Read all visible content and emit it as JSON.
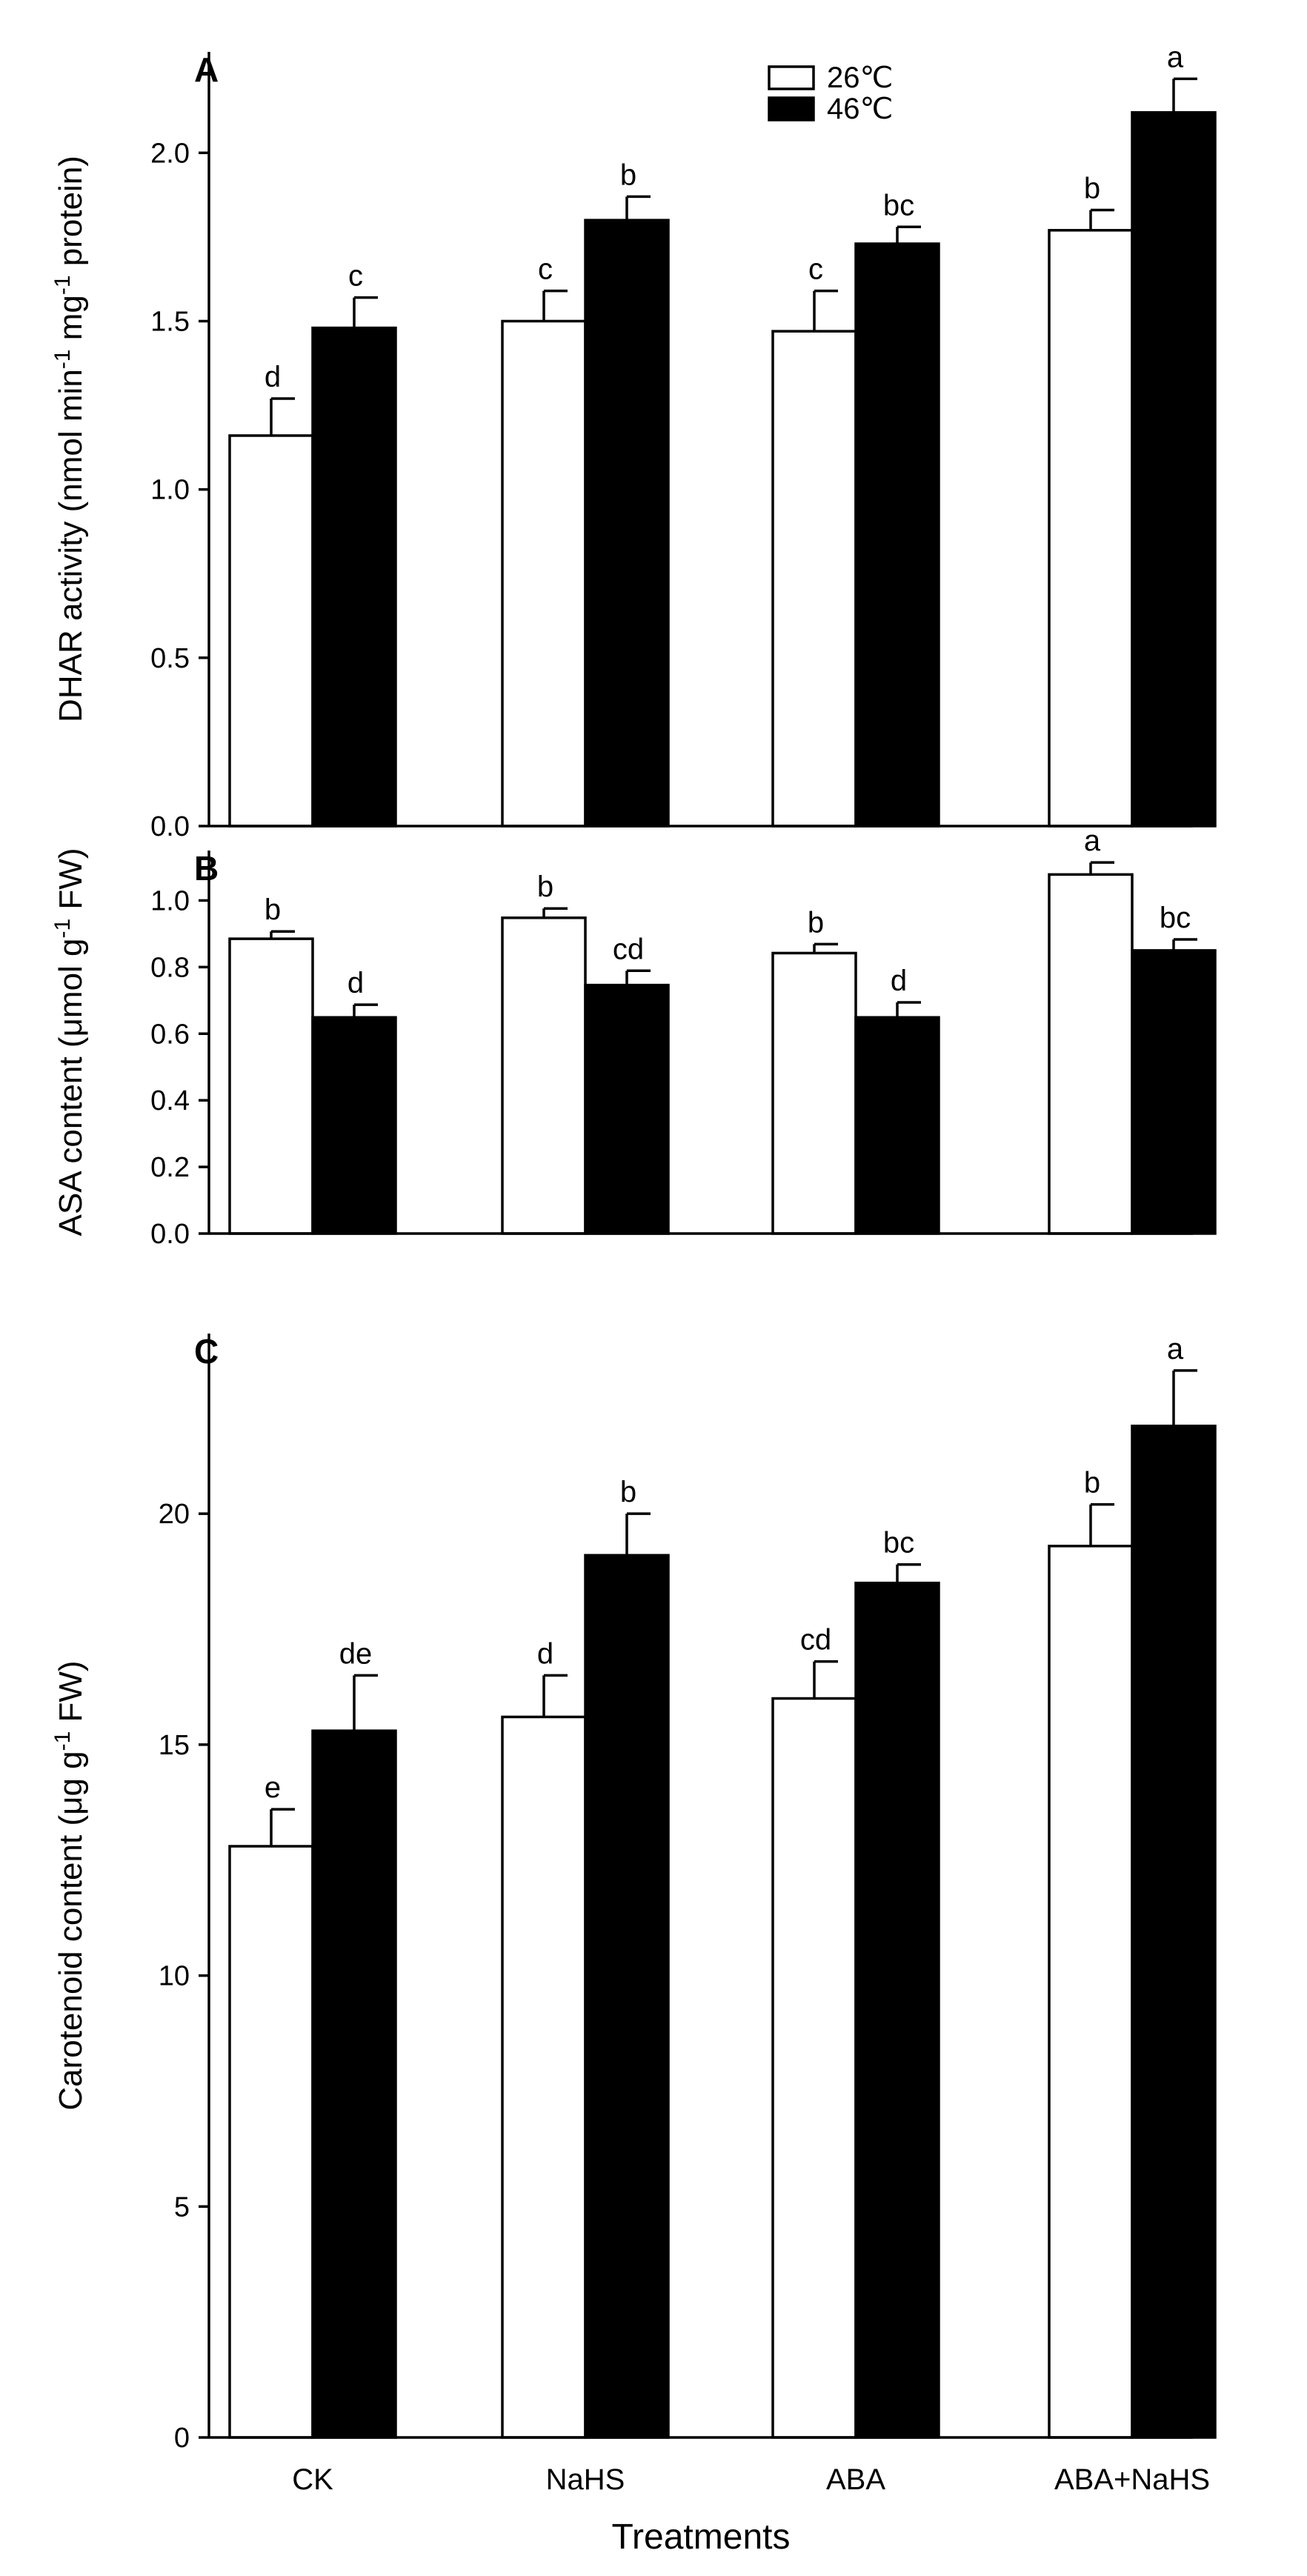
{
  "chart_data": [
    {
      "type": "bar",
      "panel": "A",
      "categories": [
        "CK",
        "NaHS",
        "ABA",
        "ABA+NaHS"
      ],
      "ylabel": "DHAR activity (nmol min",
      "ylabel_sup1": "-1",
      "ylabel_mid": " mg",
      "ylabel_sup2": "-1",
      "ylabel_end": " protein)",
      "ylim": [
        0,
        2.3
      ],
      "yticks": [
        0.0,
        0.5,
        1.0,
        1.5,
        2.0
      ],
      "ytick_labels": [
        "0.0",
        "0.5",
        "1.0",
        "1.5",
        "2.0"
      ],
      "legend": [
        "26℃",
        "46℃"
      ],
      "series": [
        {
          "name": "26℃",
          "style": "open",
          "values": [
            1.16,
            1.5,
            1.47,
            1.77
          ],
          "errors": [
            0.11,
            0.09,
            0.12,
            0.06
          ],
          "letters": [
            "d",
            "c",
            "c",
            "b"
          ]
        },
        {
          "name": "46℃",
          "style": "filled",
          "values": [
            1.48,
            1.8,
            1.73,
            2.12
          ],
          "errors": [
            0.09,
            0.07,
            0.05,
            0.1
          ],
          "letters": [
            "c",
            "b",
            "bc",
            "a"
          ]
        }
      ]
    },
    {
      "type": "bar",
      "panel": "B",
      "categories": [
        "CK",
        "NaHS",
        "ABA",
        "ABA+NaHS"
      ],
      "ylabel": "ASA content (μmol g",
      "ylabel_sup1": "-1",
      "ylabel_end": " FW)",
      "ylim": [
        0,
        1.15
      ],
      "yticks": [
        0.0,
        0.2,
        0.4,
        0.6,
        0.8,
        1.0
      ],
      "ytick_labels": [
        "0.0",
        "0.2",
        "0.4",
        "0.6",
        "0.8",
        "1.0"
      ],
      "series": [
        {
          "name": "26℃",
          "style": "open",
          "values": [
            0.885,
            0.948,
            0.842,
            1.078
          ],
          "errors": [
            0.022,
            0.028,
            0.027,
            0.036
          ],
          "letters": [
            "b",
            "b",
            "b",
            "a"
          ]
        },
        {
          "name": "46℃",
          "style": "filled",
          "values": [
            0.649,
            0.746,
            0.649,
            0.85
          ],
          "errors": [
            0.038,
            0.043,
            0.045,
            0.033
          ],
          "letters": [
            "d",
            "cd",
            "d",
            "bc"
          ]
        }
      ]
    },
    {
      "type": "bar",
      "panel": "C",
      "categories": [
        "CK",
        "NaHS",
        "ABA",
        "ABA+NaHS"
      ],
      "ylabel": "Carotenoid content (μg g",
      "ylabel_sup1": "-1",
      "ylabel_end": " FW)",
      "xlabel": "Treatments",
      "ylim": [
        0,
        23.9
      ],
      "yticks": [
        0,
        5,
        10,
        15,
        20
      ],
      "ytick_labels": [
        "0",
        "5",
        "10",
        "15",
        "20"
      ],
      "series": [
        {
          "name": "26℃",
          "style": "open",
          "values": [
            12.8,
            15.6,
            16.0,
            19.3
          ],
          "errors": [
            0.8,
            0.9,
            0.8,
            0.9
          ],
          "letters": [
            "e",
            "d",
            "cd",
            "b"
          ]
        },
        {
          "name": "46℃",
          "style": "filled",
          "values": [
            15.3,
            19.1,
            18.5,
            21.9
          ],
          "errors": [
            1.2,
            0.9,
            0.4,
            1.2
          ],
          "letters": [
            "de",
            "b",
            "bc",
            "a"
          ]
        }
      ]
    }
  ]
}
